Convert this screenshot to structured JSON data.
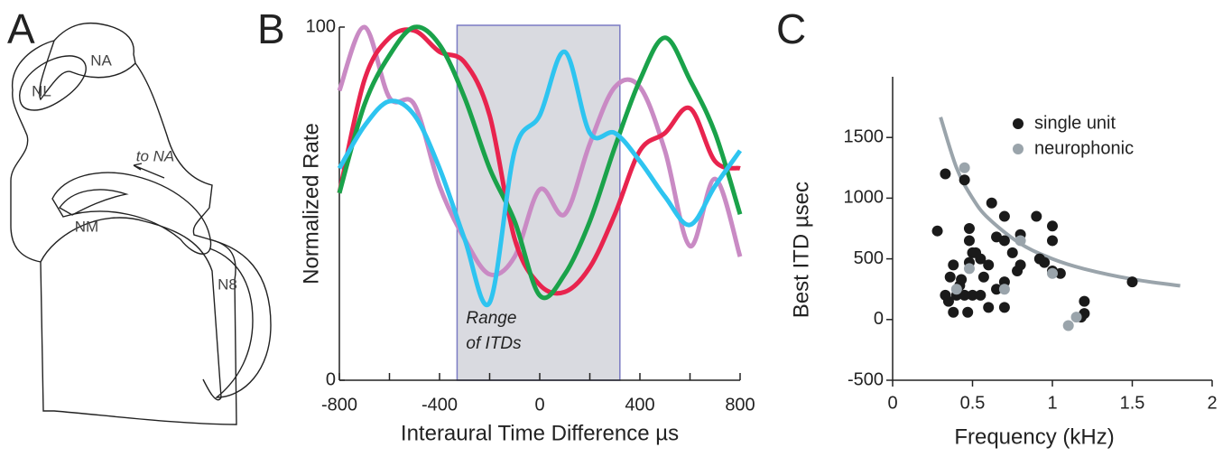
{
  "panel_labels": [
    "A",
    "B",
    "C"
  ],
  "diagram": {
    "labels": [
      "NA",
      "NL",
      "to NA",
      "NM",
      "N8"
    ]
  },
  "chart_data": [
    {
      "type": "line",
      "ylabel": "Normalized Rate",
      "xlabel": "Interaural Time Difference µs",
      "annotation": [
        "Range",
        "of ITDs"
      ],
      "span": [
        -330,
        320
      ],
      "span_color": "#d9dae0",
      "span_edge": "#7b7bc4",
      "xlim": [
        -800,
        800
      ],
      "ylim": [
        0,
        100
      ],
      "xticks": [
        -800,
        -400,
        0,
        400,
        800
      ],
      "xminorticks": [
        -600,
        -200,
        200,
        600
      ],
      "yticks": [
        0,
        100
      ],
      "x": [
        -800,
        -700,
        -600,
        -500,
        -400,
        -300,
        -200,
        -100,
        0,
        100,
        200,
        300,
        400,
        500,
        600,
        700,
        800
      ],
      "series": [
        {
          "color": "#c98ac4",
          "values": [
            82,
            100,
            80,
            78,
            55,
            40,
            30,
            35,
            54,
            47,
            67,
            83,
            83,
            65,
            38,
            57,
            35
          ]
        },
        {
          "color": "#e8244e",
          "values": [
            53,
            85,
            97,
            99,
            93,
            90,
            75,
            40,
            27,
            25,
            32,
            47,
            65,
            70,
            77,
            62,
            60
          ]
        },
        {
          "color": "#1aa24a",
          "values": [
            53,
            78,
            92,
            100,
            95,
            80,
            60,
            45,
            24,
            30,
            45,
            66,
            85,
            97,
            85,
            70,
            47
          ]
        },
        {
          "color": "#2ec4f0",
          "values": [
            60,
            72,
            79,
            75,
            60,
            40,
            22,
            65,
            75,
            93,
            70,
            70,
            62,
            52,
            44,
            55,
            65
          ]
        }
      ]
    },
    {
      "type": "scatter",
      "ylabel": "Best ITD µsec",
      "xlabel": "Frequency (kHz)",
      "xlim": [
        0,
        2
      ],
      "ylim": [
        -500,
        2000
      ],
      "xticks": [
        0,
        0.5,
        1,
        1.5,
        2
      ],
      "yticks": [
        -500,
        0,
        500,
        1000,
        1500
      ],
      "legend": "upper right",
      "series": [
        {
          "name": "single unit",
          "color": "#1a1a1a",
          "x": [
            0.28,
            0.33,
            0.45,
            0.36,
            0.38,
            0.42,
            0.33,
            0.35,
            0.38,
            0.4,
            0.43,
            0.45,
            0.47,
            0.48,
            0.48,
            0.5,
            0.48,
            0.52,
            0.55,
            0.5,
            0.55,
            0.57,
            0.6,
            0.62,
            0.6,
            0.65,
            0.7,
            0.7,
            0.7,
            0.7,
            0.75,
            0.78,
            0.8,
            0.8,
            0.9,
            0.92,
            0.95,
            1.0,
            1.0,
            1.05,
            1.0,
            1.2,
            1.2,
            1.18,
            1.5,
            0.65
          ],
          "values": [
            730,
            1200,
            1150,
            350,
            450,
            280,
            200,
            150,
            60,
            200,
            330,
            200,
            60,
            750,
            650,
            550,
            470,
            550,
            500,
            200,
            200,
            350,
            450,
            960,
            100,
            680,
            850,
            650,
            310,
            100,
            550,
            400,
            700,
            450,
            850,
            500,
            470,
            770,
            650,
            380,
            400,
            150,
            50,
            20,
            310,
            250
          ]
        },
        {
          "name": "neurophonic",
          "color": "#9aa4ab",
          "x": [
            0.45,
            0.48,
            0.4,
            0.7,
            0.8,
            1.0,
            1.1,
            1.15
          ],
          "values": [
            1250,
            420,
            250,
            250,
            650,
            380,
            -50,
            20
          ]
        }
      ],
      "fit": {
        "color": "#9aa4ab",
        "x": [
          0.3,
          0.4,
          0.5,
          0.6,
          0.8,
          1.0,
          1.2,
          1.5,
          1.8
        ],
        "values": [
          1667,
          1250,
          1000,
          833,
          625,
          500,
          417,
          333,
          278
        ]
      }
    }
  ]
}
